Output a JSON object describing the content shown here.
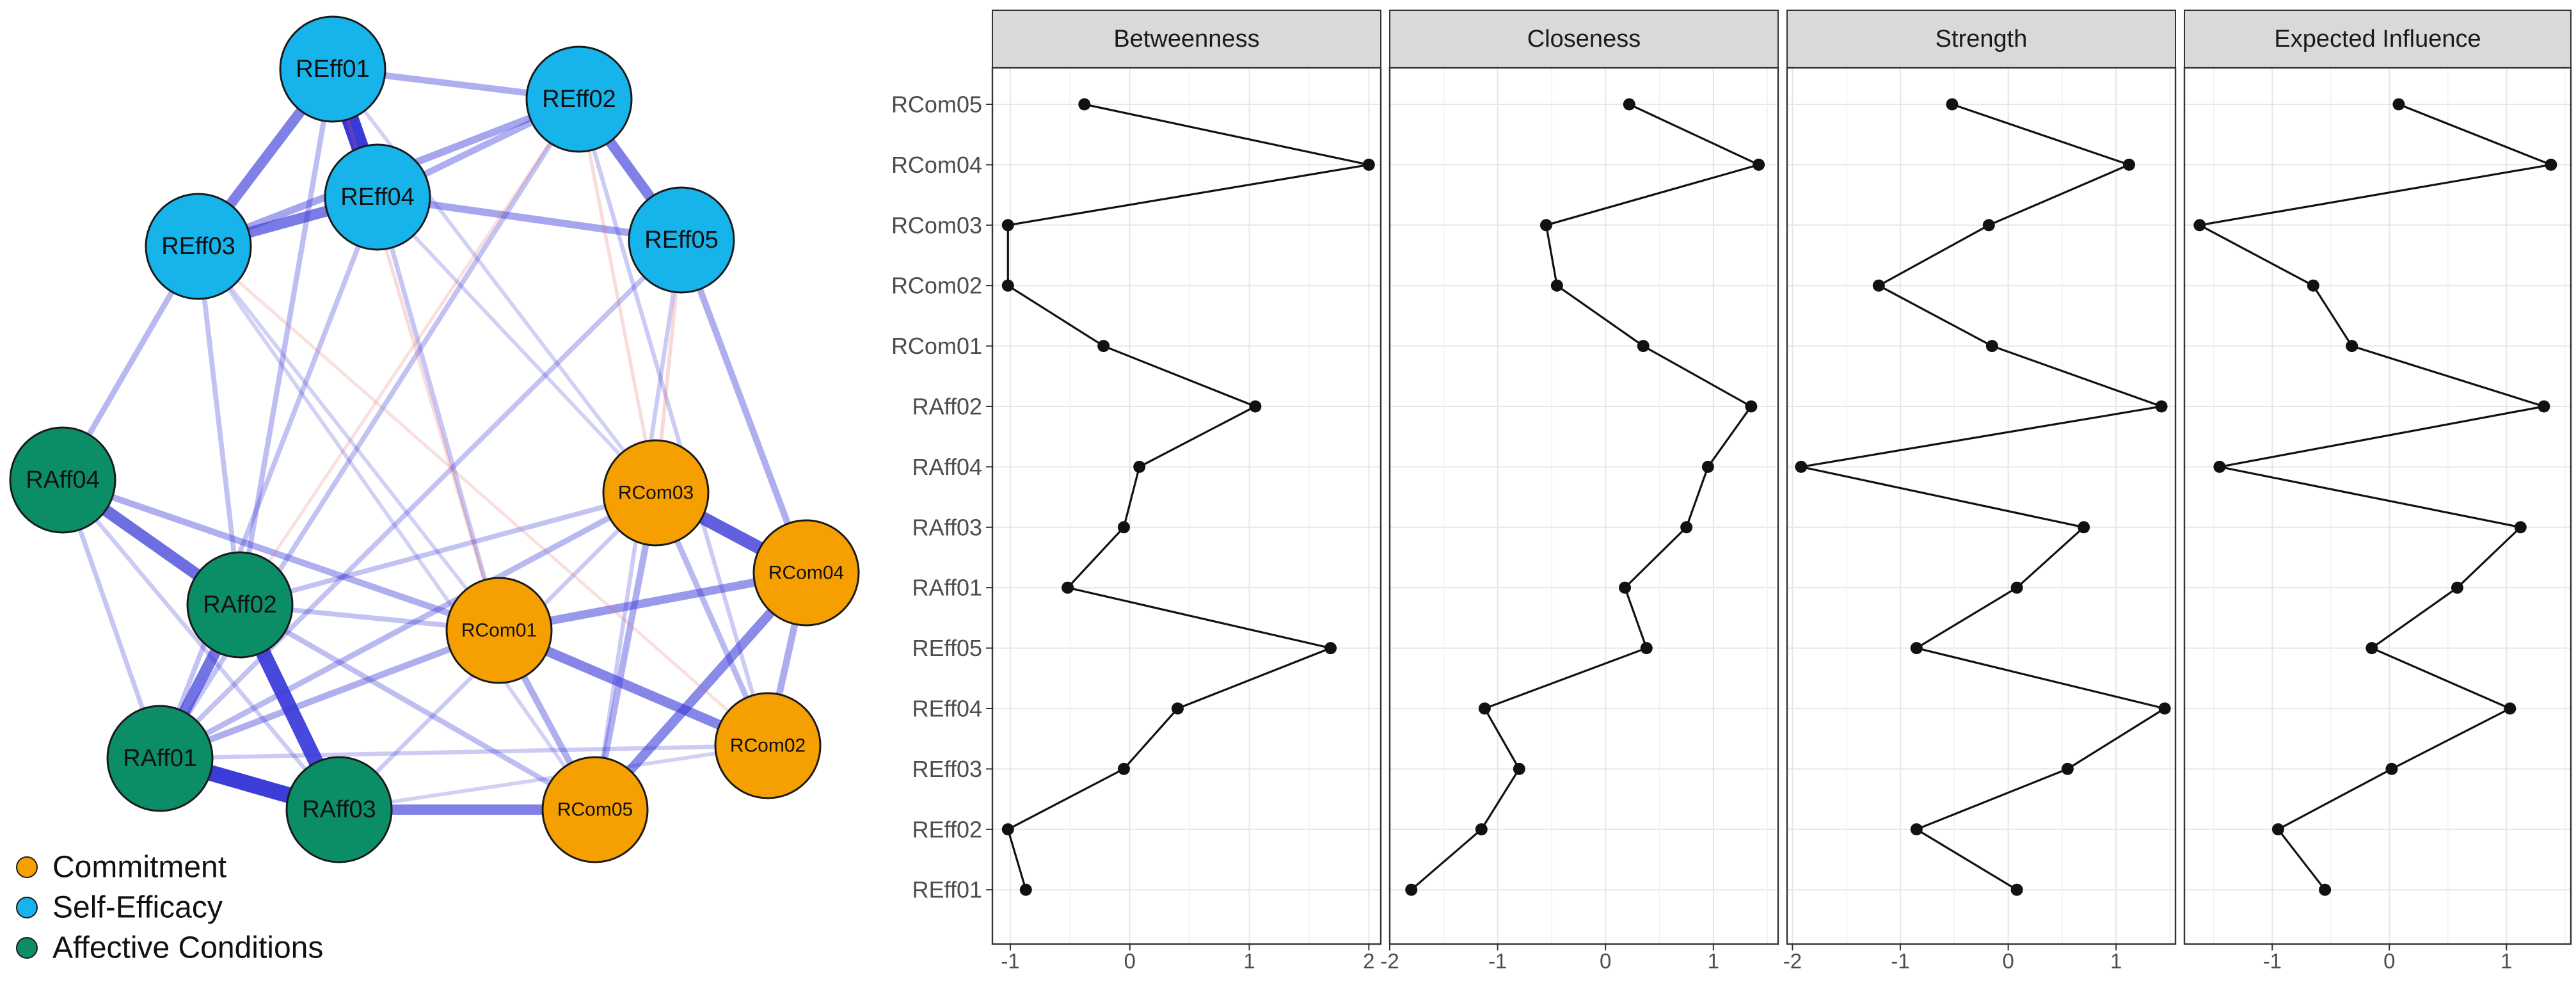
{
  "colors": {
    "commitment": "#F5A000",
    "self_efficacy": "#16B4EA",
    "affective": "#0B8E68",
    "positive_edge": "#3A3AD9",
    "negative_edge": "#E85A5A",
    "strip_bg": "#D9D9D9",
    "grid": "#E6E6E6",
    "line": "#111111"
  },
  "network": {
    "legend": [
      {
        "label": "Commitment",
        "group": "commitment"
      },
      {
        "label": "Self-Efficacy",
        "group": "self_efficacy"
      },
      {
        "label": "Affective Conditions",
        "group": "affective"
      }
    ],
    "nodes": [
      {
        "id": "REff01",
        "label": "REff01",
        "group": "self_efficacy"
      },
      {
        "id": "REff02",
        "label": "REff02",
        "group": "self_efficacy"
      },
      {
        "id": "REff03",
        "label": "REff03",
        "group": "self_efficacy"
      },
      {
        "id": "REff04",
        "label": "REff04",
        "group": "self_efficacy"
      },
      {
        "id": "REff05",
        "label": "REff05",
        "group": "self_efficacy"
      },
      {
        "id": "RAff01",
        "label": "RAff01",
        "group": "affective"
      },
      {
        "id": "RAff02",
        "label": "RAff02",
        "group": "affective"
      },
      {
        "id": "RAff03",
        "label": "RAff03",
        "group": "affective"
      },
      {
        "id": "RAff04",
        "label": "RAff04",
        "group": "affective"
      },
      {
        "id": "RCom01",
        "label": "RCom01",
        "group": "commitment"
      },
      {
        "id": "RCom02",
        "label": "RCom02",
        "group": "commitment"
      },
      {
        "id": "RCom03",
        "label": "RCom03",
        "group": "commitment"
      },
      {
        "id": "RCom04",
        "label": "RCom04",
        "group": "commitment"
      },
      {
        "id": "RCom05",
        "label": "RCom05",
        "group": "commitment"
      }
    ],
    "edges": [
      {
        "from": "REff01",
        "to": "REff04",
        "weight": 1.0,
        "sign": "+"
      },
      {
        "from": "RAff01",
        "to": "RAff03",
        "weight": 0.92,
        "sign": "+"
      },
      {
        "from": "RAff02",
        "to": "RAff03",
        "weight": 0.85,
        "sign": "+"
      },
      {
        "from": "RCom03",
        "to": "RCom04",
        "weight": 0.72,
        "sign": "+"
      },
      {
        "from": "RAff04",
        "to": "RAff02",
        "weight": 0.65,
        "sign": "+"
      },
      {
        "from": "RAff01",
        "to": "RAff02",
        "weight": 0.62,
        "sign": "+"
      },
      {
        "from": "REff03",
        "to": "REff04",
        "weight": 0.58,
        "sign": "+"
      },
      {
        "from": "REff01",
        "to": "REff03",
        "weight": 0.55,
        "sign": "+"
      },
      {
        "from": "REff02",
        "to": "REff05",
        "weight": 0.55,
        "sign": "+"
      },
      {
        "from": "RAff03",
        "to": "RCom05",
        "weight": 0.55,
        "sign": "+"
      },
      {
        "from": "RCom01",
        "to": "RCom02",
        "weight": 0.52,
        "sign": "+"
      },
      {
        "from": "RCom04",
        "to": "RCom05",
        "weight": 0.5,
        "sign": "+"
      },
      {
        "from": "RCom01",
        "to": "RCom04",
        "weight": 0.42,
        "sign": "+"
      },
      {
        "from": "REff04",
        "to": "REff05",
        "weight": 0.35,
        "sign": "+"
      },
      {
        "from": "REff03",
        "to": "REff02",
        "weight": 0.35,
        "sign": "+"
      },
      {
        "from": "REff04",
        "to": "REff02",
        "weight": 0.3,
        "sign": "+"
      },
      {
        "from": "REff01",
        "to": "REff02",
        "weight": 0.3,
        "sign": "+"
      },
      {
        "from": "RCom02",
        "to": "RCom04",
        "weight": 0.32,
        "sign": "+"
      },
      {
        "from": "RCom03",
        "to": "RCom05",
        "weight": 0.3,
        "sign": "+"
      },
      {
        "from": "RCom01",
        "to": "RCom05",
        "weight": 0.3,
        "sign": "+"
      },
      {
        "from": "RCom03",
        "to": "RCom02",
        "weight": 0.25,
        "sign": "+"
      },
      {
        "from": "RCom01",
        "to": "RAff01",
        "weight": 0.3,
        "sign": "+"
      },
      {
        "from": "RAff04",
        "to": "RCom01",
        "weight": 0.3,
        "sign": "+"
      },
      {
        "from": "RAff01",
        "to": "RCom03",
        "weight": 0.25,
        "sign": "+"
      },
      {
        "from": "RAff02",
        "to": "RCom03",
        "weight": 0.2,
        "sign": "+"
      },
      {
        "from": "RAff02",
        "to": "RCom05",
        "weight": 0.22,
        "sign": "+"
      },
      {
        "from": "RAff02",
        "to": "RCom01",
        "weight": 0.2,
        "sign": "+"
      },
      {
        "from": "REff05",
        "to": "RCom04",
        "weight": 0.3,
        "sign": "+"
      },
      {
        "from": "REff03",
        "to": "RAff04",
        "weight": 0.25,
        "sign": "+"
      },
      {
        "from": "REff01",
        "to": "RAff02",
        "weight": 0.22,
        "sign": "+"
      },
      {
        "from": "REff03",
        "to": "RAff02",
        "weight": 0.2,
        "sign": "+"
      },
      {
        "from": "REff04",
        "to": "RAff01",
        "weight": 0.2,
        "sign": "+"
      },
      {
        "from": "REff04",
        "to": "RCom01",
        "weight": 0.18,
        "sign": "+"
      },
      {
        "from": "REff02",
        "to": "RAff01",
        "weight": 0.2,
        "sign": "+"
      },
      {
        "from": "REff05",
        "to": "RAff01",
        "weight": 0.2,
        "sign": "+"
      },
      {
        "from": "REff02",
        "to": "RCom02",
        "weight": 0.15,
        "sign": "+"
      },
      {
        "from": "REff05",
        "to": "RCom05",
        "weight": 0.15,
        "sign": "+"
      },
      {
        "from": "REff03",
        "to": "RCom05",
        "weight": 0.12,
        "sign": "+"
      },
      {
        "from": "REff01",
        "to": "RCom03",
        "weight": 0.12,
        "sign": "+"
      },
      {
        "from": "RAff04",
        "to": "RAff01",
        "weight": 0.18,
        "sign": "+"
      },
      {
        "from": "RAff04",
        "to": "RAff03",
        "weight": 0.15,
        "sign": "+"
      },
      {
        "from": "RAff01",
        "to": "RCom02",
        "weight": 0.15,
        "sign": "+"
      },
      {
        "from": "RAff03",
        "to": "RCom03",
        "weight": 0.15,
        "sign": "+"
      },
      {
        "from": "RAff03",
        "to": "RCom02",
        "weight": 0.12,
        "sign": "+"
      },
      {
        "from": "REff04",
        "to": "RCom03",
        "weight": 0.12,
        "sign": "+"
      },
      {
        "from": "REff03",
        "to": "RCom01",
        "weight": 0.12,
        "sign": "+"
      },
      {
        "from": "REff01",
        "to": "RCom01",
        "weight": 0.1,
        "sign": "-"
      },
      {
        "from": "REff03",
        "to": "RCom02",
        "weight": 0.08,
        "sign": "-"
      },
      {
        "from": "REff02",
        "to": "RCom03",
        "weight": 0.1,
        "sign": "-"
      },
      {
        "from": "REff05",
        "to": "RCom03",
        "weight": 0.12,
        "sign": "-"
      },
      {
        "from": "REff02",
        "to": "RAff02",
        "weight": 0.08,
        "sign": "-"
      }
    ]
  },
  "chart_data": {
    "type": "line",
    "title": "",
    "xlabel": "",
    "ylabel": "",
    "categories": [
      "RCom05",
      "RCom04",
      "RCom03",
      "RCom02",
      "RCom01",
      "RAff02",
      "RAff04",
      "RAff03",
      "RAff01",
      "REff05",
      "REff04",
      "REff03",
      "REff02",
      "REff01"
    ],
    "series": [
      {
        "name": "Betweenness",
        "xlim": [
          -1.15,
          2.1
        ],
        "xticks": [
          -1,
          0,
          1,
          2
        ],
        "xtick_labels": [
          "-1",
          "0",
          "1",
          "2"
        ],
        "values": [
          -0.38,
          2.0,
          -1.02,
          -1.02,
          -0.22,
          1.05,
          0.08,
          -0.05,
          -0.52,
          1.68,
          0.4,
          -0.05,
          -1.02,
          -0.87
        ]
      },
      {
        "name": "Closeness",
        "xlim": [
          -2.0,
          1.6
        ],
        "xticks": [
          -2,
          -1,
          0,
          1
        ],
        "xtick_labels": [
          "-2",
          "-1",
          "0",
          "1"
        ],
        "values": [
          0.22,
          1.42,
          -0.55,
          -0.45,
          0.35,
          1.35,
          0.95,
          0.75,
          0.18,
          0.38,
          -1.12,
          -0.8,
          -1.15,
          -1.8
        ]
      },
      {
        "name": "Strength",
        "xlim": [
          -2.05,
          1.55
        ],
        "xticks": [
          -2,
          -1,
          0,
          1
        ],
        "xtick_labels": [
          "-2",
          "-1",
          "0",
          "1"
        ],
        "values": [
          -0.52,
          1.12,
          -0.18,
          -1.2,
          -0.15,
          1.42,
          -1.92,
          0.7,
          0.08,
          -0.85,
          1.45,
          0.55,
          -0.85,
          0.08
        ]
      },
      {
        "name": "Expected Influence",
        "xlim": [
          -1.75,
          1.55
        ],
        "xticks": [
          -1,
          0,
          1
        ],
        "xtick_labels": [
          "-1",
          "0",
          "1"
        ],
        "values": [
          0.08,
          1.38,
          -1.62,
          -0.65,
          -0.32,
          1.32,
          -1.45,
          1.12,
          0.58,
          -0.15,
          1.03,
          0.02,
          -0.95,
          -0.55
        ]
      }
    ]
  }
}
